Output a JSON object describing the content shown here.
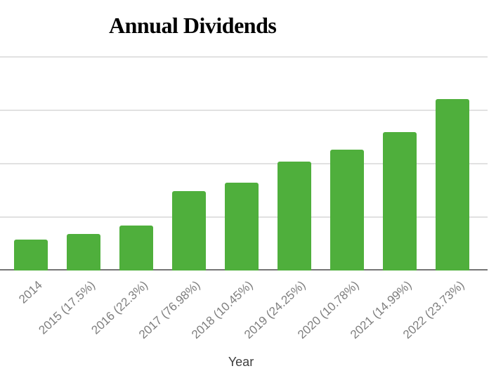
{
  "chart_data": {
    "type": "bar",
    "title": "Annual Dividends",
    "xlabel": "Year",
    "ylabel": "",
    "y_axis_labeled": false,
    "grid": true,
    "legend_position": "none",
    "categories": [
      "2014",
      "2015 (17.5%)",
      "2016 (22.3%)",
      "2017 (76.98%)",
      "2018 (10.45%)",
      "2019 (24.25%)",
      "2020 (10.78%)",
      "2021 (14.99%)",
      "2022 (23.73%)"
    ],
    "years": [
      2014,
      2015,
      2016,
      2017,
      2018,
      2019,
      2020,
      2021,
      2022
    ],
    "yoy_growth_pct": [
      null,
      17.5,
      22.3,
      76.98,
      10.45,
      24.25,
      10.78,
      14.99,
      23.73
    ],
    "values": [
      1.0,
      1.175,
      1.437,
      2.543,
      2.809,
      3.49,
      3.866,
      4.446,
      5.501
    ],
    "value_note": "No y-axis labels visible; values are relative with 2014 = 1.0, inferred from the labeled year-over-year growth percentages",
    "ylim": [
      0,
      6.85
    ],
    "gridline_values": [
      1.71,
      3.42,
      5.14,
      6.85
    ],
    "colors": {
      "bar": "#4faf3c",
      "gridline": "#e1e1e1",
      "axis_line": "#757575",
      "tick_label": "#7e7e7e",
      "axis_title": "#3d3d3d",
      "title": "#000000",
      "background": "#ffffff"
    }
  }
}
